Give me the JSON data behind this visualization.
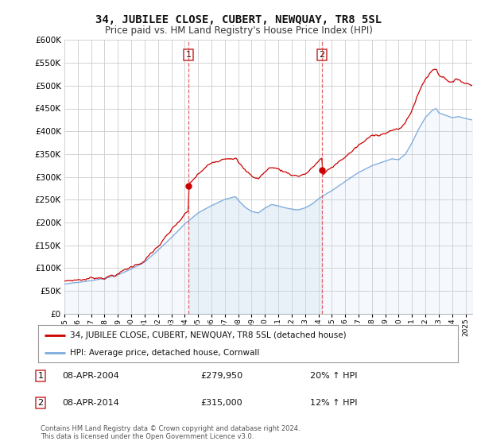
{
  "title": "34, JUBILEE CLOSE, CUBERT, NEWQUAY, TR8 5SL",
  "subtitle": "Price paid vs. HM Land Registry's House Price Index (HPI)",
  "footer": "Contains HM Land Registry data © Crown copyright and database right 2024.\nThis data is licensed under the Open Government Licence v3.0.",
  "legend_line1": "34, JUBILEE CLOSE, CUBERT, NEWQUAY, TR8 5SL (detached house)",
  "legend_line2": "HPI: Average price, detached house, Cornwall",
  "transaction1_date": "08-APR-2004",
  "transaction1_price": "£279,950",
  "transaction1_hpi": "20% ↑ HPI",
  "transaction2_date": "08-APR-2014",
  "transaction2_price": "£315,000",
  "transaction2_hpi": "12% ↑ HPI",
  "property_color": "#cc0000",
  "hpi_color": "#7aaadd",
  "hpi_fill_color": "#c8ddf0",
  "vline_color": "#dd4444",
  "background_color": "#ffffff",
  "grid_color": "#cccccc",
  "ylim": [
    0,
    600000
  ],
  "yticks": [
    0,
    50000,
    100000,
    150000,
    200000,
    250000,
    300000,
    350000,
    400000,
    450000,
    500000,
    550000,
    600000
  ],
  "xlim_start": 1995.0,
  "xlim_end": 2025.5,
  "vline1_x": 2004.27,
  "vline2_x": 2014.27
}
